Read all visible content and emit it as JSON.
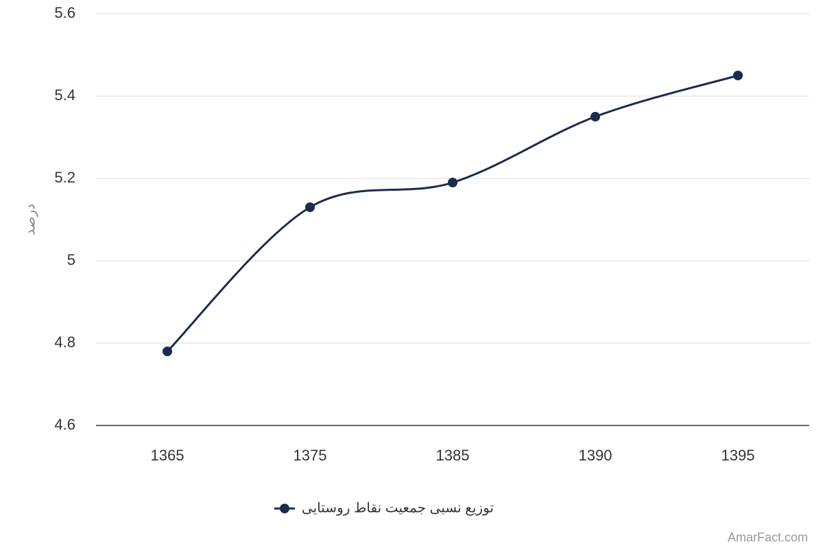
{
  "chart_data": {
    "type": "line",
    "y_label": "درصد",
    "categories": [
      "1365",
      "1375",
      "1385",
      "1390",
      "1395"
    ],
    "series": [
      {
        "name": "توزیع نسبی جمعیت نقاط روستایی",
        "color": "#1b2a4e",
        "values": [
          4.78,
          5.13,
          5.19,
          5.35,
          5.45
        ]
      }
    ],
    "ylim": [
      4.6,
      5.6
    ],
    "yticks": [
      4.6,
      4.8,
      5,
      5.2,
      5.4,
      5.6
    ],
    "grid": true,
    "smooth": true,
    "legend": "bottom",
    "credit": "AmarFact.com"
  }
}
